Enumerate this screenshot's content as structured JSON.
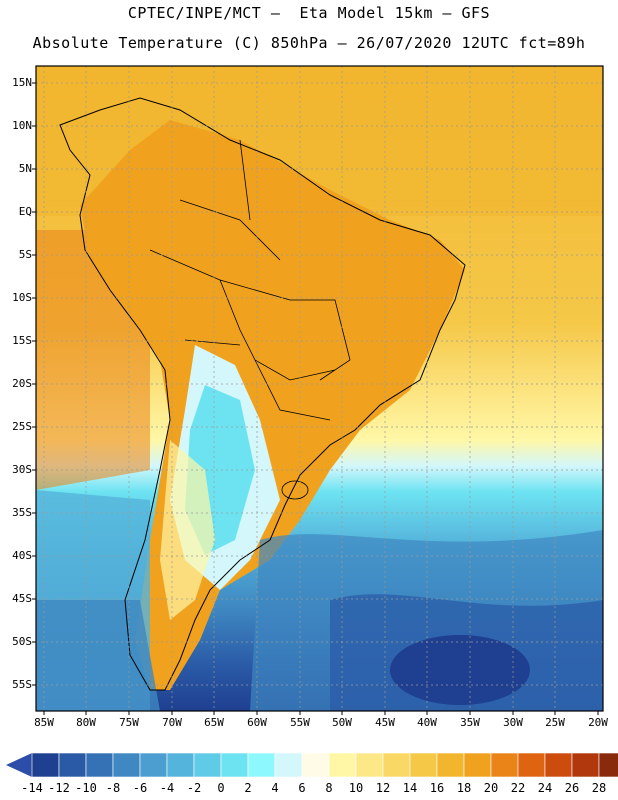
{
  "header": {
    "line1": "CPTEC/INPE/MCT –  Eta Model 15km – GFS",
    "line2": "Absolute Temperature (C) 850hPa – 26/07/2020 12UTC fct=89h"
  },
  "axes": {
    "lat_labels": [
      "15N",
      "10N",
      "5N",
      "EQ",
      "5S",
      "10S",
      "15S",
      "20S",
      "25S",
      "30S",
      "35S",
      "40S",
      "45S",
      "50S",
      "55S"
    ],
    "lon_labels": [
      "85W",
      "80W",
      "75W",
      "70W",
      "65W",
      "60W",
      "55W",
      "50W",
      "45W",
      "40W",
      "35W",
      "30W",
      "25W",
      "20W"
    ]
  },
  "colorbar": {
    "tick_labels": [
      "-14",
      "-12",
      "-10",
      "-8",
      "-6",
      "-4",
      "-2",
      "0",
      "2",
      "4",
      "6",
      "8",
      "10",
      "12",
      "14",
      "16",
      "18",
      "20",
      "22",
      "24",
      "26",
      "28"
    ],
    "bin_colors": [
      "#1f3f90",
      "#2a5aa6",
      "#3572b5",
      "#3f88c2",
      "#4b9ecf",
      "#55b4db",
      "#5fcbe6",
      "#6de3f2",
      "#8ef8ff",
      "#d3f7fb",
      "#fffbe6",
      "#fff7a6",
      "#fde888",
      "#f9d865",
      "#f5c848",
      "#f2b52e",
      "#f0a21f",
      "#ea8418",
      "#df6412",
      "#cc4c0e",
      "#b0380c",
      "#8a2a0c"
    ],
    "under_color": "#2c4ea8",
    "over_color": "#8a1f24"
  }
}
